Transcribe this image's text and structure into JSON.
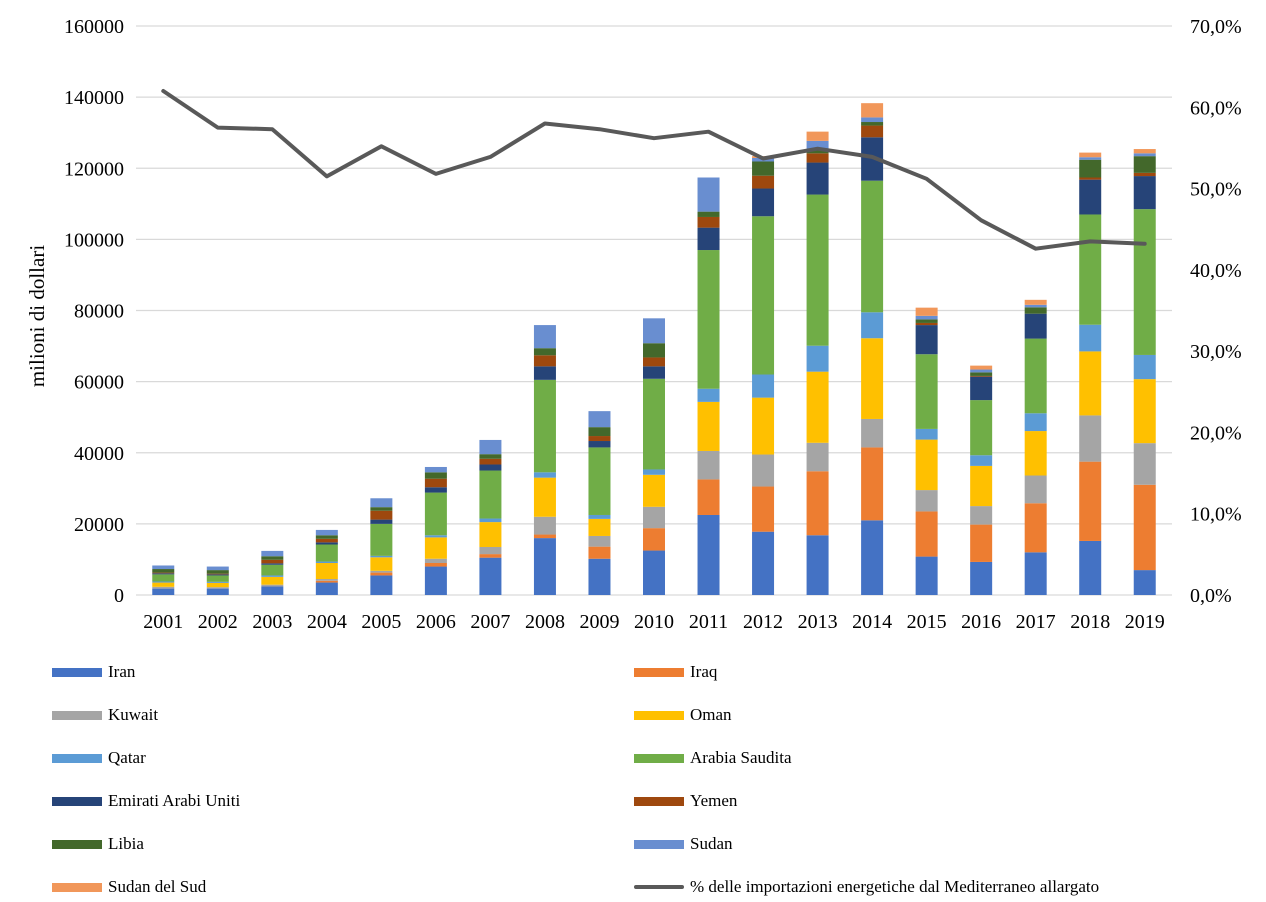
{
  "chart_data": {
    "type": "bar",
    "stacked": true,
    "categories": [
      "2001",
      "2002",
      "2003",
      "2004",
      "2005",
      "2006",
      "2007",
      "2008",
      "2009",
      "2010",
      "2011",
      "2012",
      "2013",
      "2014",
      "2015",
      "2016",
      "2017",
      "2018",
      "2019"
    ],
    "ylabel": "milioni di dollari",
    "ylim": [
      0,
      160000
    ],
    "yticks": [
      "0",
      "20000",
      "40000",
      "60000",
      "80000",
      "100000",
      "120000",
      "140000",
      "160000"
    ],
    "y2lim": [
      0,
      70
    ],
    "y2ticks": [
      "0,0%",
      "10,0%",
      "20,0%",
      "30,0%",
      "40,0%",
      "50,0%",
      "60,0%",
      "70,0%"
    ],
    "grid": true,
    "legend_position": "bottom",
    "series": [
      {
        "name": "Iran",
        "color": "#4472C4",
        "values": [
          1800,
          1800,
          2400,
          3500,
          5500,
          8000,
          10500,
          16000,
          10200,
          12500,
          22500,
          17800,
          16800,
          21000,
          10800,
          9300,
          12000,
          15200,
          7000
        ]
      },
      {
        "name": "Iraq",
        "color": "#ED7D31",
        "values": [
          0,
          0,
          0,
          500,
          800,
          1000,
          1000,
          1000,
          3400,
          6300,
          10000,
          12700,
          18000,
          20500,
          12700,
          10500,
          13800,
          22300,
          24000
        ]
      },
      {
        "name": "Kuwait",
        "color": "#A5A5A5",
        "values": [
          500,
          400,
          500,
          500,
          500,
          1200,
          2000,
          5000,
          3000,
          6000,
          8000,
          9000,
          8000,
          8000,
          6000,
          5200,
          7800,
          13000,
          11700
        ]
      },
      {
        "name": "Oman",
        "color": "#FFC000",
        "values": [
          1200,
          1200,
          2200,
          4500,
          3800,
          6000,
          7000,
          11000,
          4800,
          9000,
          13800,
          16000,
          20000,
          22700,
          14200,
          11300,
          12500,
          18000,
          18000
        ]
      },
      {
        "name": "Qatar",
        "color": "#5B9BD5",
        "values": [
          300,
          300,
          400,
          400,
          400,
          600,
          1000,
          1500,
          1100,
          1500,
          3700,
          6500,
          7300,
          7300,
          3000,
          3000,
          5000,
          7500,
          6800
        ]
      },
      {
        "name": "Arabia Saudita",
        "color": "#70AD47",
        "values": [
          2000,
          1800,
          3000,
          4800,
          9000,
          12000,
          13500,
          26000,
          19000,
          25500,
          39000,
          44500,
          42500,
          37000,
          21000,
          15500,
          21000,
          31000,
          41000
        ]
      },
      {
        "name": "Emirati Arabi Uniti",
        "color": "#264478",
        "values": [
          300,
          300,
          400,
          600,
          1200,
          1500,
          1700,
          3800,
          1800,
          3500,
          6300,
          7800,
          9000,
          12200,
          8200,
          6600,
          7000,
          9800,
          9300
        ]
      },
      {
        "name": "Yemen",
        "color": "#9E480E",
        "values": [
          200,
          200,
          1000,
          1000,
          2500,
          2400,
          1600,
          3100,
          1400,
          2500,
          3000,
          3600,
          2600,
          3300,
          600,
          200,
          0,
          600,
          900
        ]
      },
      {
        "name": "Libia",
        "color": "#43682B",
        "values": [
          1000,
          1000,
          1000,
          1000,
          1000,
          1800,
          1300,
          2000,
          2500,
          4000,
          1500,
          4000,
          1000,
          1000,
          1000,
          1000,
          1800,
          5000,
          4700
        ]
      },
      {
        "name": "Sudan",
        "color": "#698ED0",
        "values": [
          1000,
          1000,
          1500,
          1500,
          2500,
          1500,
          4000,
          6500,
          4500,
          7000,
          9600,
          1000,
          2500,
          1300,
          1000,
          800,
          700,
          700,
          800
        ]
      },
      {
        "name": "Sudan del Sud",
        "color": "#F1975A",
        "values": [
          0,
          0,
          0,
          0,
          0,
          0,
          0,
          0,
          0,
          0,
          0,
          500,
          2600,
          4000,
          2300,
          1100,
          1400,
          1300,
          1200
        ]
      }
    ],
    "line_series": {
      "name": "% delle importazioni energetiche dal Mediterraneo allargato",
      "color": "#595959",
      "axis": "secondary",
      "values": [
        62.0,
        57.5,
        57.3,
        51.5,
        55.2,
        51.8,
        53.9,
        58.0,
        57.3,
        56.2,
        57.0,
        53.7,
        54.9,
        53.9,
        51.2,
        46.1,
        42.6,
        43.5,
        43.2
      ]
    }
  }
}
